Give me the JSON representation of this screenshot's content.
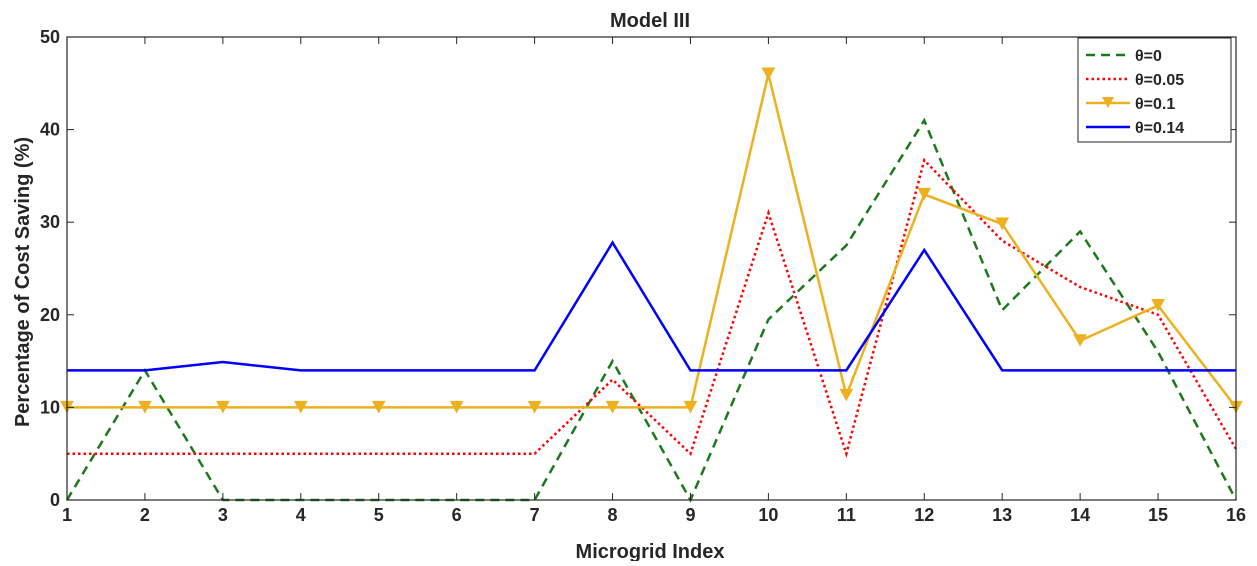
{
  "chart_data": {
    "type": "line",
    "title": "Model III",
    "xlabel": "Microgrid Index",
    "ylabel": "Percentage of Cost Saving (%)",
    "xlim": [
      1,
      16
    ],
    "ylim": [
      0,
      50
    ],
    "x_ticks": [
      "1",
      "2",
      "3",
      "4",
      "5",
      "6",
      "7",
      "8",
      "9",
      "10",
      "11",
      "12",
      "13",
      "14",
      "15",
      "16"
    ],
    "y_ticks": [
      "0",
      "10",
      "20",
      "30",
      "40",
      "50"
    ],
    "grid": false,
    "legend_position": "top-right",
    "x": [
      1,
      2,
      3,
      4,
      5,
      6,
      7,
      8,
      9,
      10,
      11,
      12,
      13,
      14,
      15,
      16
    ],
    "series": [
      {
        "name": "θ=0",
        "color": "#1a7a1a",
        "style": "dashed",
        "marker": "none",
        "values": [
          0,
          14,
          0,
          0,
          0,
          0,
          0,
          15,
          0,
          19.5,
          27.5,
          41,
          20.5,
          29,
          16,
          0
        ]
      },
      {
        "name": "θ=0.05",
        "color": "#ff0000",
        "style": "dotted",
        "marker": "none",
        "values": [
          5,
          5,
          5,
          5,
          5,
          5,
          5,
          13,
          5,
          31,
          5,
          36.7,
          28,
          23,
          20,
          5.5
        ]
      },
      {
        "name": "θ=0.1",
        "color": "#edb120",
        "style": "solid",
        "marker": "triangle-down",
        "values": [
          10,
          10,
          10,
          10,
          10,
          10,
          10,
          10,
          10,
          46,
          11.3,
          33,
          29.8,
          17.2,
          21,
          10
        ]
      },
      {
        "name": "θ=0.14",
        "color": "#0000ff",
        "style": "solid",
        "marker": "none",
        "values": [
          14,
          14,
          14.9,
          14,
          14,
          14,
          14,
          27.8,
          14,
          14,
          14,
          27,
          14,
          14,
          14,
          14
        ]
      }
    ]
  }
}
